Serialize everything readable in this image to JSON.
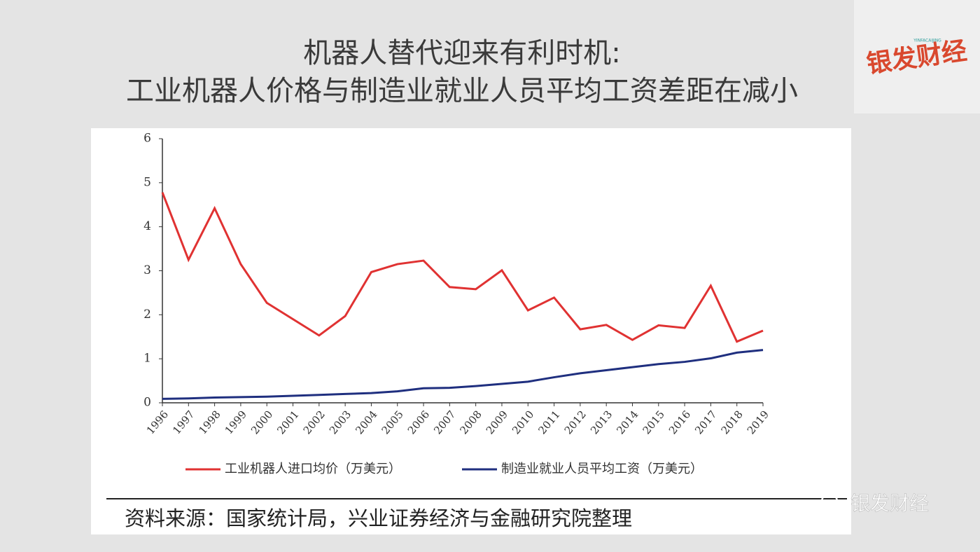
{
  "chart_data": {
    "type": "line",
    "title": "机器人替代迎来有利时机:",
    "subtitle": "工业机器人价格与制造业就业人员平均工资差距在减小",
    "categories": [
      "1996",
      "1997",
      "1998",
      "1999",
      "2000",
      "2001",
      "2002",
      "2003",
      "2004",
      "2005",
      "2006",
      "2007",
      "2008",
      "2009",
      "2010",
      "2011",
      "2012",
      "2013",
      "2014",
      "2015",
      "2016",
      "2017",
      "2018",
      "2019"
    ],
    "series": [
      {
        "name": "工业机器人进口均价（万美元）",
        "color": "#e03232",
        "values": [
          4.78,
          3.25,
          4.42,
          3.15,
          2.27,
          1.9,
          1.53,
          1.97,
          2.97,
          3.15,
          3.23,
          2.63,
          2.58,
          3.01,
          2.1,
          2.39,
          1.67,
          1.77,
          1.43,
          1.76,
          1.7,
          2.66,
          1.39,
          1.64
        ]
      },
      {
        "name": "制造业就业人员平均工资（万美元）",
        "color": "#1f2f7f",
        "values": [
          0.09,
          0.1,
          0.12,
          0.13,
          0.14,
          0.16,
          0.18,
          0.2,
          0.22,
          0.26,
          0.33,
          0.34,
          0.38,
          0.43,
          0.48,
          0.58,
          0.67,
          0.74,
          0.81,
          0.88,
          0.93,
          1.01,
          1.14,
          1.2
        ]
      }
    ],
    "ylim": [
      0,
      6
    ],
    "yticks": [
      0,
      1,
      2,
      3,
      4,
      5,
      6
    ],
    "grid": false,
    "legend": "bottom",
    "source": "资料来源：国家统计局，兴业证券经济与金融研究院整理"
  },
  "logo": {
    "name": "银发财经",
    "sub": "YINFACAIJING"
  },
  "watermark": "银发财经"
}
